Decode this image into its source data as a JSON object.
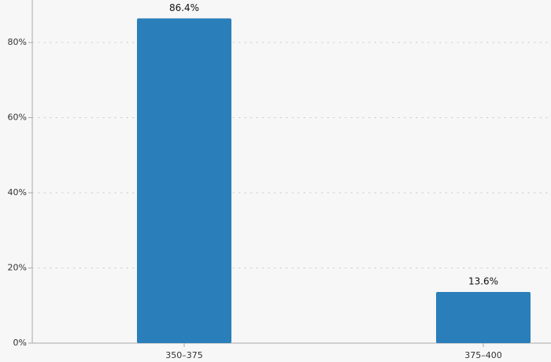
{
  "chart_data": {
    "type": "bar",
    "categories": [
      "350–375",
      "375–400"
    ],
    "values": [
      86.4,
      13.6
    ],
    "value_labels": [
      "86.4%",
      "13.6%"
    ],
    "color": "#2a7fba",
    "ylim": [
      0,
      91.3
    ],
    "yticks": [
      {
        "value": 0,
        "label": "0%"
      },
      {
        "value": 20,
        "label": "20%"
      },
      {
        "value": 40,
        "label": "40%"
      },
      {
        "value": 60,
        "label": "60%"
      },
      {
        "value": 80,
        "label": "80%"
      }
    ],
    "grid": true
  }
}
